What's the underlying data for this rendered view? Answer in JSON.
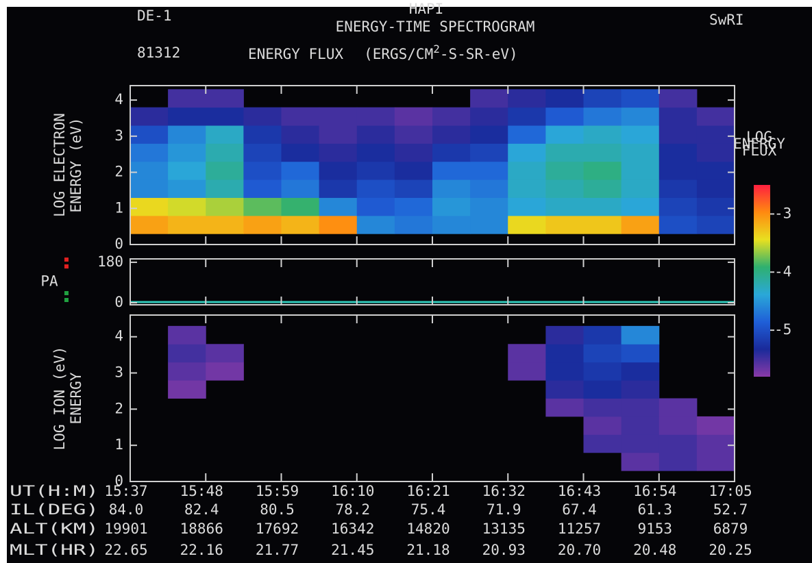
{
  "header": {
    "mission": "DE-1",
    "title": "HAPI",
    "subtitle": "ENERGY-TIME SPECTROGRAM",
    "institution": "SwRI",
    "date": "81312",
    "flux_label": "ENERGY FLUX",
    "unit_a": "(ERGS/CM",
    "unit_sup": "2",
    "unit_b": "-S-SR-eV)"
  },
  "colorbar": {
    "label": [
      "LOG",
      "ENERGY",
      "FLUX"
    ],
    "clim": [
      -5.8,
      -2.5
    ],
    "ticks": [
      -3,
      -4,
      -5
    ],
    "colors": [
      "#8a3aa8",
      "#1a2a9a",
      "#1f5fd8",
      "#2aa8d8",
      "#2fb070",
      "#e8e020",
      "#ff8a10",
      "#ff2040"
    ]
  },
  "chart_data": [
    {
      "type": "heatmap",
      "y_label": [
        "LOG ELECTRON",
        "ENERGY  (eV)"
      ],
      "xlim": [
        0,
        8
      ],
      "xticks": [
        0,
        1,
        2,
        3,
        4,
        5,
        6,
        7,
        8
      ],
      "ylim": [
        0,
        4.4
      ],
      "yticks": [
        0,
        1,
        2,
        3,
        4
      ],
      "x_bins": [
        0,
        0.5,
        1,
        1.5,
        2,
        2.5,
        3,
        3.5,
        4,
        4.5,
        5,
        5.5,
        6,
        6.5,
        7,
        7.5,
        8
      ],
      "y_bins": [
        0.3,
        0.8,
        1.3,
        1.8,
        2.3,
        2.8,
        3.3,
        3.8,
        4.3
      ],
      "z": [
        [
          -3.1,
          -3.2,
          -3.2,
          -3.1,
          -3.2,
          -3.0,
          -4.6,
          -4.7,
          -4.6,
          -4.6,
          -3.4,
          -3.3,
          -3.3,
          -3.1,
          -5.0,
          -5.1
        ],
        [
          -3.4,
          -3.5,
          -3.6,
          -3.8,
          -3.9,
          -4.6,
          -4.9,
          -4.8,
          -4.5,
          -4.6,
          -4.4,
          -4.3,
          -4.3,
          -4.4,
          -5.1,
          -5.2
        ],
        [
          -4.6,
          -4.5,
          -4.2,
          -4.9,
          -4.7,
          -5.2,
          -5.0,
          -5.1,
          -4.6,
          -4.7,
          -4.3,
          -4.2,
          -4.1,
          -4.3,
          -5.2,
          -5.3
        ],
        [
          -4.6,
          -4.4,
          -4.1,
          -5.0,
          -4.8,
          -5.3,
          -5.2,
          -5.3,
          -4.8,
          -4.8,
          -4.3,
          -4.1,
          -4.0,
          -4.3,
          -5.3,
          -5.3
        ],
        [
          -4.7,
          -4.5,
          -4.2,
          -5.1,
          -5.3,
          -5.4,
          -5.3,
          -5.4,
          -5.2,
          -5.1,
          -4.4,
          -4.2,
          -4.2,
          -4.3,
          -5.3,
          -5.4
        ],
        [
          -5.0,
          -4.6,
          -4.3,
          -5.2,
          -5.4,
          -5.5,
          -5.4,
          -5.5,
          -5.4,
          -5.3,
          -4.8,
          -4.4,
          -4.3,
          -4.4,
          -5.4,
          -5.4
        ],
        [
          -5.4,
          -5.3,
          -5.3,
          -5.4,
          -5.5,
          -5.5,
          -5.5,
          -5.6,
          -5.5,
          -5.4,
          -5.2,
          -4.9,
          -4.7,
          -4.6,
          -5.4,
          -5.5
        ],
        [
          null,
          -5.5,
          -5.5,
          null,
          null,
          null,
          null,
          null,
          null,
          -5.5,
          -5.4,
          -5.3,
          -5.1,
          -5.0,
          -5.5,
          null
        ]
      ]
    },
    {
      "type": "line",
      "y_label": [
        "PA"
      ],
      "xlim": [
        0,
        8
      ],
      "xticks": [
        0,
        1,
        2,
        3,
        4,
        5,
        6,
        7,
        8
      ],
      "ylim": [
        -9,
        195
      ],
      "yticks": [
        0,
        180
      ],
      "x": [
        0,
        8
      ],
      "values": [
        3,
        3
      ],
      "color": "#30c8b8"
    },
    {
      "type": "heatmap",
      "y_label": [
        "LOG ION  (eV)",
        "ENERGY"
      ],
      "xlim": [
        0,
        8
      ],
      "xticks": [
        0,
        1,
        2,
        3,
        4,
        5,
        6,
        7,
        8
      ],
      "ylim": [
        0,
        4.6
      ],
      "yticks": [
        0,
        1,
        2,
        3,
        4
      ],
      "x_bins": [
        0,
        0.5,
        1,
        1.5,
        2,
        2.5,
        3,
        3.5,
        4,
        4.5,
        5,
        5.5,
        6,
        6.5,
        7,
        7.5,
        8
      ],
      "y_bins": [
        0.3,
        0.8,
        1.3,
        1.8,
        2.3,
        2.8,
        3.3,
        3.8,
        4.3
      ],
      "z": [
        [
          null,
          null,
          null,
          null,
          null,
          null,
          null,
          null,
          null,
          null,
          null,
          null,
          null,
          -5.6,
          -5.5,
          -5.6
        ],
        [
          null,
          null,
          null,
          null,
          null,
          null,
          null,
          null,
          null,
          null,
          null,
          null,
          -5.5,
          -5.5,
          -5.5,
          -5.6
        ],
        [
          null,
          null,
          null,
          null,
          null,
          null,
          null,
          null,
          null,
          null,
          null,
          null,
          -5.6,
          -5.5,
          -5.6,
          -5.7
        ],
        [
          null,
          null,
          null,
          null,
          null,
          null,
          null,
          null,
          null,
          null,
          null,
          -5.6,
          -5.5,
          -5.5,
          -5.6,
          null
        ],
        [
          null,
          -5.7,
          null,
          null,
          null,
          null,
          null,
          null,
          null,
          null,
          null,
          -5.4,
          -5.3,
          -5.4,
          null,
          null
        ],
        [
          null,
          -5.6,
          -5.7,
          null,
          null,
          null,
          null,
          null,
          null,
          null,
          -5.6,
          -5.3,
          -5.2,
          -5.3,
          null,
          null
        ],
        [
          null,
          -5.5,
          -5.6,
          null,
          null,
          null,
          null,
          null,
          null,
          null,
          -5.6,
          -5.3,
          -5.1,
          -5.0,
          null,
          null
        ],
        [
          null,
          -5.6,
          null,
          null,
          null,
          null,
          null,
          null,
          null,
          null,
          null,
          -5.4,
          -5.2,
          -4.6,
          null,
          null
        ]
      ]
    }
  ],
  "ephemeris": [
    {
      "label": "UT(H:M)",
      "values": [
        "15:37",
        "15:48",
        "15:59",
        "16:10",
        "16:21",
        "16:32",
        "16:43",
        "16:54",
        "17:05"
      ]
    },
    {
      "label": "IL(DEG)",
      "values": [
        "84.0",
        "82.4",
        "80.5",
        "78.2",
        "75.4",
        "71.9",
        "67.4",
        "61.3",
        "52.7"
      ]
    },
    {
      "label": "ALT(KM)",
      "values": [
        "19901",
        "18866",
        "17692",
        "16342",
        "14820",
        "13135",
        "11257",
        "9153",
        "6879"
      ]
    },
    {
      "label": "MLT(HR)",
      "values": [
        "22.65",
        "22.16",
        "21.77",
        "21.45",
        "21.18",
        "20.93",
        "20.70",
        "20.48",
        "20.25"
      ]
    }
  ]
}
